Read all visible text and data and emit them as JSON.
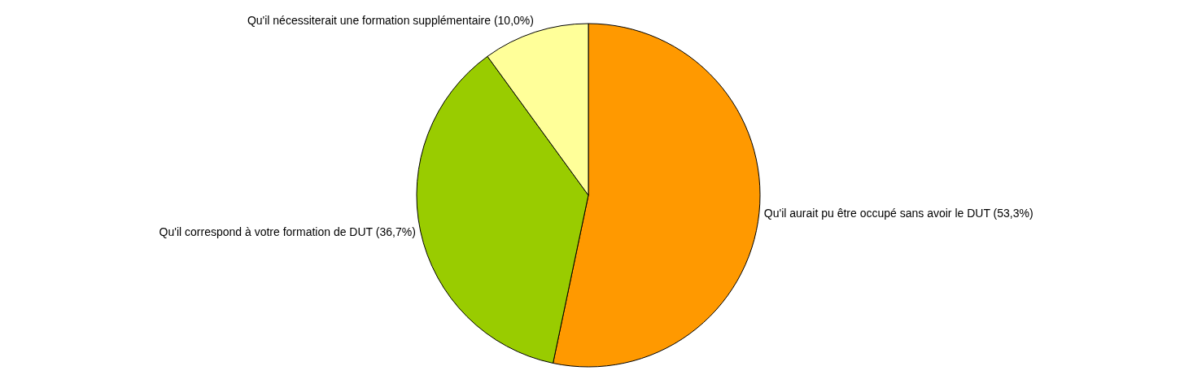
{
  "chart_data": {
    "type": "pie",
    "categories": [
      "Qu'il aurait pu être occupé sans avoir le DUT",
      "Qu'il correspond à votre formation de DUT",
      "Qu'il nécessiterait une formation supplémentaire"
    ],
    "values": [
      53.3,
      36.7,
      10.0
    ],
    "value_labels": [
      "(53,3%)",
      "(36,7%)",
      "(10,0%)"
    ],
    "colors": [
      "#ff9900",
      "#99cc00",
      "#ffff99"
    ]
  }
}
